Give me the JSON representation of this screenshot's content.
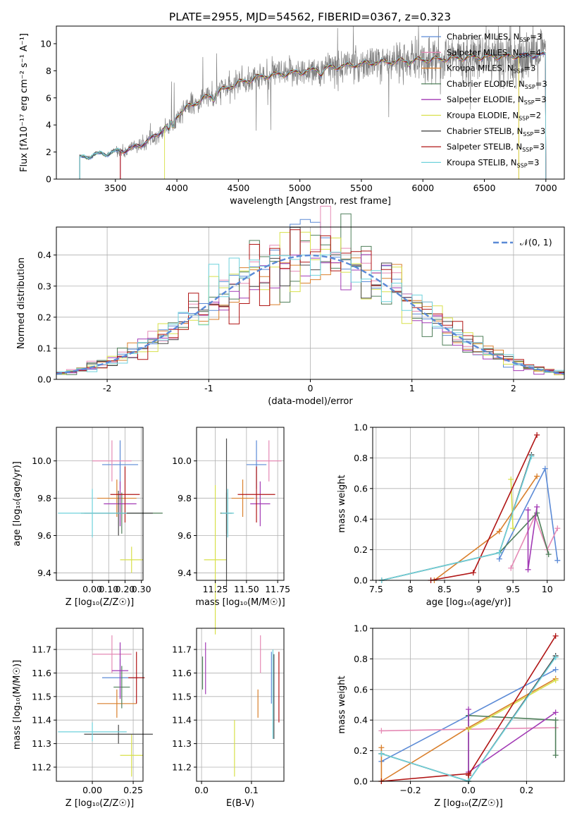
{
  "figure_title": "PLATE=2955, MJD=54562, FIBERID=0367, z=0.323",
  "model_colors": [
    "#5b8ad6",
    "#e58ab5",
    "#d97f2b",
    "#4f7f5a",
    "#a23ab5",
    "#d8e04a",
    "#4a4a4a",
    "#b01515",
    "#6fd2dc"
  ],
  "chart_data": [
    {
      "type": "line",
      "title": "PLATE=2955, MJD=54562, FIBERID=0367, z=0.323",
      "xlabel": "wavelength [Angstrom, rest frame]",
      "ylabel": "Flux [fλ10⁻¹⁷ erg cm⁻² s⁻¹ A⁻¹]",
      "xlim": [
        3020,
        7150
      ],
      "ylim": [
        0,
        11.3
      ],
      "xticks": [
        3500,
        4000,
        4500,
        5000,
        5500,
        6000,
        6500,
        7000
      ],
      "yticks": [
        0,
        2,
        4,
        6,
        8,
        10
      ],
      "grid": false,
      "legend": "top-right",
      "data_color": "#808080",
      "continuum_knots_x": [
        3210,
        3300,
        3500,
        3650,
        3800,
        3900,
        4000,
        4100,
        4300,
        4500,
        4700,
        5000,
        5300,
        5600,
        6000,
        6400,
        6800,
        7150
      ],
      "continuum_knots_y": [
        1.55,
        1.75,
        2.0,
        2.3,
        3.0,
        3.8,
        4.7,
        5.4,
        6.3,
        7.1,
        7.6,
        7.9,
        8.3,
        8.6,
        8.8,
        9.0,
        9.1,
        9.2
      ],
      "series": [
        {
          "name": "Chabrier MILES, N_SSP=3",
          "label_main": "Chabrier MILES, N",
          "label_sub": "SSP",
          "label_tail": "=3"
        },
        {
          "name": "Salpeter MILES, N_SSP=4",
          "label_main": "Salpeter MILES, N",
          "label_sub": "SSP",
          "label_tail": "=4"
        },
        {
          "name": "Kroupa MILES, N_SSP=3",
          "label_main": "Kroupa MILES, N",
          "label_sub": "SSP",
          "label_tail": "=3"
        },
        {
          "name": "Chabrier ELODIE, N_SSP=3",
          "label_main": "Chabrier ELODIE, N",
          "label_sub": "SSP",
          "label_tail": "=3"
        },
        {
          "name": "Salpeter ELODIE, N_SSP=3",
          "label_main": "Salpeter ELODIE, N",
          "label_sub": "SSP",
          "label_tail": "=3"
        },
        {
          "name": "Kroupa ELODIE, N_SSP=2",
          "label_main": "Kroupa ELODIE, N",
          "label_sub": "SSP",
          "label_tail": "=2"
        },
        {
          "name": "Chabrier STELIB, N_SSP=3",
          "label_main": "Chabrier STELIB, N",
          "label_sub": "SSP",
          "label_tail": "=3"
        },
        {
          "name": "Salpeter STELIB, N_SSP=3",
          "label_main": "Salpeter STELIB, N",
          "label_sub": "SSP",
          "label_tail": "=3"
        },
        {
          "name": "Kroupa STELIB, N_SSP=3",
          "label_main": "Kroupa STELIB, N",
          "label_sub": "SSP",
          "label_tail": "=3"
        }
      ],
      "model_starts": [
        3210,
        3540,
        3540,
        3210,
        3540,
        3900,
        3210,
        3540,
        3210
      ],
      "model_ends": [
        7000,
        6780,
        6780,
        7000,
        7000,
        6780,
        7000,
        7000,
        7000
      ]
    },
    {
      "type": "line",
      "xlabel": "(data-model)/error",
      "ylabel": "Normed distribution",
      "xlim": [
        -2.5,
        2.5
      ],
      "ylim": [
        0,
        0.49
      ],
      "xticks": [
        -2,
        -1,
        0,
        1,
        2
      ],
      "yticks": [
        0.0,
        0.1,
        0.2,
        0.3,
        0.4
      ],
      "grid": true,
      "legend": "top-right",
      "legend_label": "𝒩(0, 1)",
      "normal_curve_color": "#5b8ad6",
      "bin_width": 0.1
    },
    {
      "type": "scatter",
      "xlabel": "Z [log₁₀(Z/Z☉)]",
      "ylabel": "age  [log₁₀(age/yr)]",
      "xlim": [
        -0.22,
        0.31
      ],
      "ylim": [
        9.36,
        10.18
      ],
      "xticks": [
        0.0,
        0.1,
        0.2,
        0.3
      ],
      "xticklabels": [
        "0.00",
        "0.10",
        "0.20",
        "0.30"
      ],
      "yticks": [
        9.4,
        9.6,
        9.8,
        10.0
      ],
      "grid": true,
      "points": [
        {
          "x": 0.17,
          "y": 9.98,
          "xerr": 0.11,
          "yerr": 0.13
        },
        {
          "x": 0.12,
          "y": 10.0,
          "xerr": 0.12,
          "yerr": 0.11
        },
        {
          "x": 0.15,
          "y": 9.8,
          "xerr": 0.12,
          "yerr": 0.1
        },
        {
          "x": 0.18,
          "y": 9.72,
          "xerr": 0.25,
          "yerr": 0.11
        },
        {
          "x": 0.17,
          "y": 9.77,
          "xerr": 0.1,
          "yerr": 0.12
        },
        {
          "x": 0.24,
          "y": 9.47,
          "xerr": 0.07,
          "yerr": 0.07
        },
        {
          "x": 0.16,
          "y": 9.72,
          "xerr": 0.21,
          "yerr": 0.12
        },
        {
          "x": 0.2,
          "y": 9.82,
          "xerr": 0.09,
          "yerr": 0.15
        },
        {
          "x": 0.0,
          "y": 9.72,
          "xerr": 0.21,
          "yerr": 0.13
        }
      ]
    },
    {
      "type": "scatter",
      "xlabel": "mass [log₁₀(M/M☉)]",
      "xlim": [
        11.1,
        11.8
      ],
      "ylim": [
        9.36,
        10.18
      ],
      "xticks": [
        11.25,
        11.5,
        11.75
      ],
      "xticklabels": [
        "11.25",
        "11.50",
        "11.75"
      ],
      "yticks": [
        9.4,
        9.6,
        9.8,
        10.0
      ],
      "grid": true,
      "points": [
        {
          "x": 11.58,
          "y": 9.98,
          "xerr": 0.08,
          "yerr": 0.13
        },
        {
          "x": 11.68,
          "y": 10.0,
          "xerr": 0.1,
          "yerr": 0.11
        },
        {
          "x": 11.47,
          "y": 9.8,
          "xerr": 0.09,
          "yerr": 0.1
        },
        {
          "x": 11.34,
          "y": 9.72,
          "xerr": 0.05,
          "yerr": 0.11
        },
        {
          "x": 11.61,
          "y": 9.77,
          "xerr": 0.08,
          "yerr": 0.12
        },
        {
          "x": 11.25,
          "y": 9.47,
          "xerr": 0.09,
          "yerr": 0.4
        },
        {
          "x": 11.34,
          "y": 9.72,
          "xerr": 0.04,
          "yerr": 0.4
        },
        {
          "x": 11.58,
          "y": 9.82,
          "xerr": 0.15,
          "yerr": 0.15
        },
        {
          "x": 11.35,
          "y": 9.72,
          "xerr": 0.05,
          "yerr": 0.13
        }
      ]
    },
    {
      "type": "line",
      "xlabel": "age  [log₁₀(age/yr)]",
      "ylabel": "mass weight",
      "xlim": [
        7.45,
        10.25
      ],
      "ylim": [
        0,
        1.0
      ],
      "xticks": [
        7.5,
        8.0,
        8.5,
        9.0,
        9.5,
        10.0
      ],
      "yticks": [
        0.0,
        0.2,
        0.4,
        0.6,
        0.8,
        1.0
      ],
      "grid": true,
      "series": [
        {
          "x": [
            9.3,
            9.97,
            10.15
          ],
          "y": [
            0.14,
            0.73,
            0.13
          ]
        },
        {
          "x": [
            9.47,
            9.82,
            10.0,
            10.15
          ],
          "y": [
            0.08,
            0.42,
            0.2,
            0.34
          ]
        },
        {
          "x": [
            8.35,
            9.3,
            9.85
          ],
          "y": [
            0.0,
            0.32,
            0.68
          ]
        },
        {
          "x": [
            7.58,
            9.3,
            9.85,
            10.02
          ],
          "y": [
            0.0,
            0.18,
            0.44,
            0.17
          ]
        },
        {
          "x": [
            9.72,
            9.72,
            9.85
          ],
          "y": [
            0.46,
            0.07,
            0.48
          ]
        },
        {
          "x": [
            9.47,
            9.5
          ],
          "y": [
            0.66,
            0.34
          ]
        },
        {
          "x": [
            7.58,
            9.3,
            9.77
          ],
          "y": [
            0.0,
            0.18,
            0.82
          ]
        },
        {
          "x": [
            8.3,
            8.92,
            9.85
          ],
          "y": [
            0.0,
            0.05,
            0.95
          ]
        },
        {
          "x": [
            7.58,
            9.3,
            9.77
          ],
          "y": [
            0.0,
            0.18,
            0.81
          ]
        }
      ]
    },
    {
      "type": "scatter",
      "xlabel": "Z [log₁₀(Z/Z☉)]",
      "ylabel": "mass [log₁₀(M/M☉)]",
      "xlim": [
        -0.22,
        0.31
      ],
      "ylim": [
        11.14,
        11.79
      ],
      "xticks": [
        0.0,
        0.25
      ],
      "xticklabels": [
        "0.00",
        "0.25"
      ],
      "yticks": [
        11.2,
        11.3,
        11.4,
        11.5,
        11.6,
        11.7
      ],
      "grid": true,
      "points": [
        {
          "x": 0.17,
          "y": 11.58,
          "xerr": 0.11,
          "yerr": 0.08
        },
        {
          "x": 0.12,
          "y": 11.68,
          "xerr": 0.12,
          "yerr": 0.08
        },
        {
          "x": 0.15,
          "y": 11.47,
          "xerr": 0.12,
          "yerr": 0.06
        },
        {
          "x": 0.18,
          "y": 11.54,
          "xerr": 0.05,
          "yerr": 0.09
        },
        {
          "x": 0.17,
          "y": 11.61,
          "xerr": 0.05,
          "yerr": 0.12
        },
        {
          "x": 0.24,
          "y": 11.25,
          "xerr": 0.07,
          "yerr": 0.09
        },
        {
          "x": 0.16,
          "y": 11.34,
          "xerr": 0.21,
          "yerr": 0.04
        },
        {
          "x": 0.27,
          "y": 11.58,
          "xerr": 0.05,
          "yerr": 0.11
        },
        {
          "x": 0.0,
          "y": 11.35,
          "xerr": 0.21,
          "yerr": 0.04
        }
      ]
    },
    {
      "type": "scatter",
      "xlabel": "E(B-V)",
      "xlim": [
        -0.01,
        0.165
      ],
      "ylim": [
        11.14,
        11.79
      ],
      "xticks": [
        0.0,
        0.1
      ],
      "xticklabels": [
        "0.0",
        "0.1"
      ],
      "yticks": [
        11.2,
        11.3,
        11.4,
        11.5,
        11.6,
        11.7
      ],
      "grid": true,
      "points": [
        {
          "x": 0.14,
          "y": 11.58,
          "xerr": 0,
          "yerr": 0.11
        },
        {
          "x": 0.118,
          "y": 11.68,
          "xerr": 0,
          "yerr": 0.08
        },
        {
          "x": 0.113,
          "y": 11.47,
          "xerr": 0,
          "yerr": 0.06
        },
        {
          "x": 0.002,
          "y": 11.6,
          "xerr": 0,
          "yerr": 0.07
        },
        {
          "x": 0.008,
          "y": 11.62,
          "xerr": 0,
          "yerr": 0.11
        },
        {
          "x": 0.066,
          "y": 11.28,
          "xerr": 0,
          "yerr": 0.12
        },
        {
          "x": 0.145,
          "y": 11.5,
          "xerr": 0,
          "yerr": 0.18
        },
        {
          "x": 0.155,
          "y": 11.54,
          "xerr": 0,
          "yerr": 0.15
        },
        {
          "x": 0.143,
          "y": 11.51,
          "xerr": 0,
          "yerr": 0.19
        }
      ]
    },
    {
      "type": "line",
      "xlabel": "Z [log₁₀(Z/Z☉)]",
      "ylabel": "mass weight",
      "xlim": [
        -0.33,
        0.33
      ],
      "ylim": [
        0,
        1.0
      ],
      "xticks": [
        -0.2,
        0.0,
        0.2
      ],
      "xticklabels": [
        "−0.2",
        "0.0",
        "0.2"
      ],
      "yticks": [
        0.0,
        0.2,
        0.4,
        0.6,
        0.8,
        1.0
      ],
      "grid": true,
      "series": [
        {
          "x": [
            -0.3,
            0.0,
            0.3
          ],
          "y": [
            0.13,
            0.43,
            0.73
          ]
        },
        {
          "x": [
            -0.3,
            0.3
          ],
          "y": [
            0.33,
            0.35
          ]
        },
        {
          "x": [
            -0.3,
            -0.3,
            0.0,
            0.3
          ],
          "y": [
            0.22,
            0.0,
            0.35,
            0.67
          ]
        },
        {
          "x": [
            -0.3,
            0.0,
            0.0,
            0.3,
            0.3
          ],
          "y": [
            0.18,
            0.0,
            0.43,
            0.4,
            0.17
          ]
        },
        {
          "x": [
            0.0,
            0.0,
            0.3
          ],
          "y": [
            0.47,
            0.06,
            0.45
          ]
        },
        {
          "x": [
            0.0,
            0.3
          ],
          "y": [
            0.34,
            0.66
          ]
        },
        {
          "x": [
            -0.3,
            0.0,
            0.3
          ],
          "y": [
            0.18,
            0.0,
            0.82
          ]
        },
        {
          "x": [
            -0.3,
            0.0,
            0.0,
            0.3
          ],
          "y": [
            0.0,
            0.05,
            0.04,
            0.95
          ]
        },
        {
          "x": [
            -0.3,
            0.0,
            0.3
          ],
          "y": [
            0.18,
            0.0,
            0.81
          ]
        }
      ]
    }
  ]
}
